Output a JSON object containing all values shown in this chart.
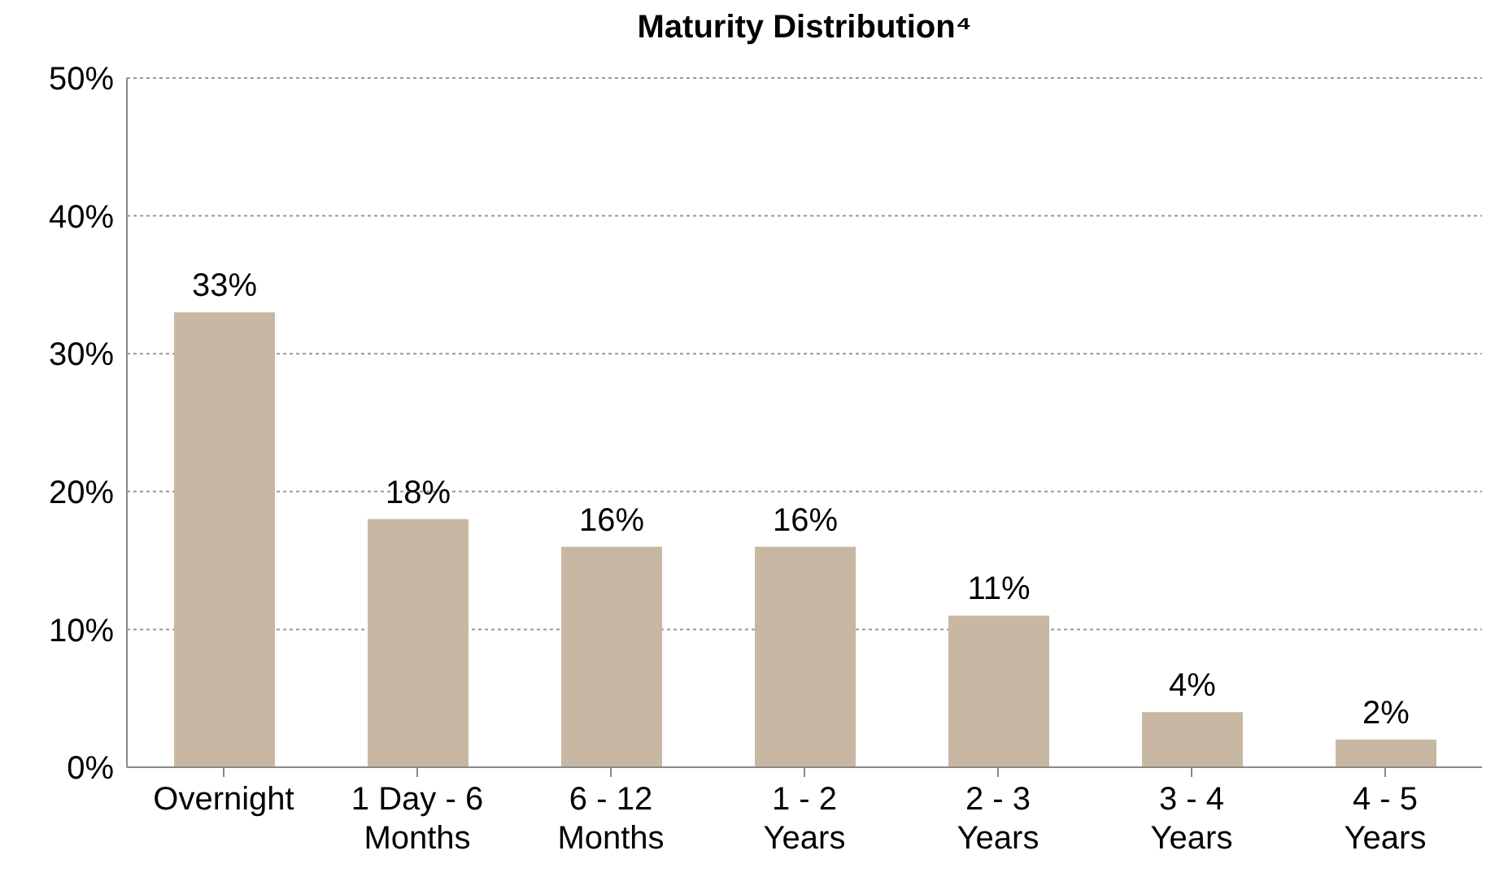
{
  "chart_data": {
    "type": "bar",
    "title": "Maturity Distribution⁴",
    "categories": [
      "Overnight",
      "1 Day - 6 Months",
      "6 - 12 Months",
      "1 - 2 Years",
      "2 - 3 Years",
      "3 - 4 Years",
      "4 - 5 Years"
    ],
    "values": [
      33,
      18,
      16,
      16,
      11,
      4,
      2
    ],
    "value_labels": [
      "33%",
      "18%",
      "16%",
      "16%",
      "11%",
      "4%",
      "2%"
    ],
    "color": "#c8b8a3",
    "ylim": [
      0,
      50
    ],
    "yticks": [
      {
        "value": 0,
        "label": "0%"
      },
      {
        "value": 10,
        "label": "10%"
      },
      {
        "value": 20,
        "label": "20%"
      },
      {
        "value": 30,
        "label": "30%"
      },
      {
        "value": 40,
        "label": "40%"
      },
      {
        "value": 50,
        "label": "50%"
      }
    ],
    "grid": "y",
    "legend": false
  }
}
